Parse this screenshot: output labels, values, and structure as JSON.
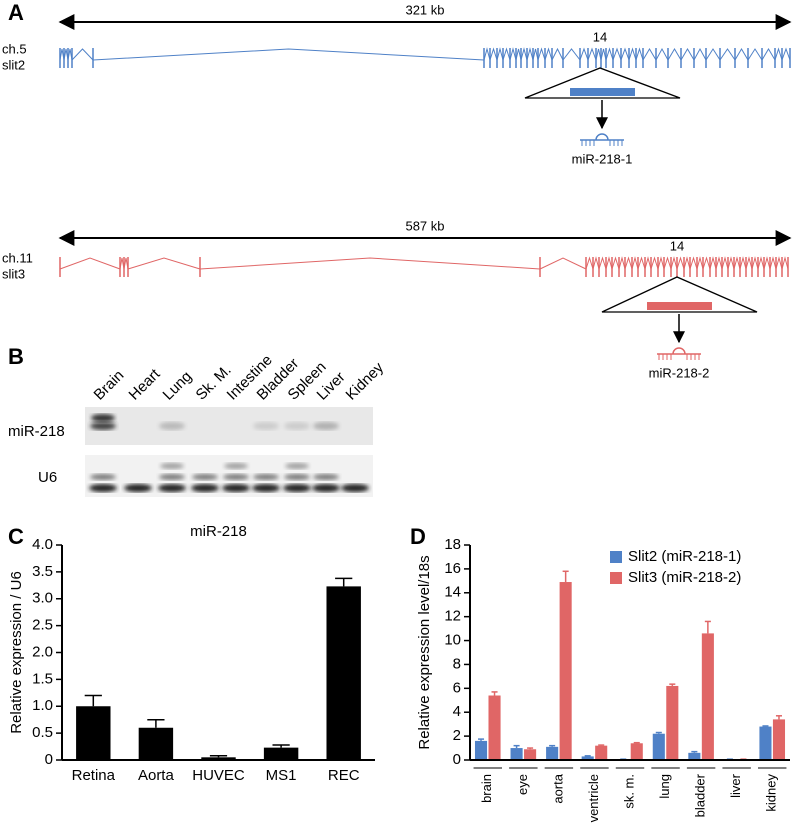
{
  "panel_a": {
    "label": "A",
    "slit2": {
      "size": "321 kb",
      "chromosome": "ch.5",
      "gene": "slit2",
      "exon": "14",
      "mirna": "miR-218-1"
    },
    "slit3": {
      "size": "587 kb",
      "chromosome": "ch.11",
      "gene": "slit3",
      "exon": "14",
      "mirna": "miR-218-2"
    }
  },
  "panel_b": {
    "label": "B",
    "lanes": [
      "Brain",
      "Heart",
      "Lung",
      "Sk. M.",
      "Intestine",
      "Bladder",
      "Spleen",
      "Liver",
      "Kidney"
    ],
    "rows": [
      "miR-218",
      "U6"
    ]
  },
  "chart_data": [
    {
      "type": "bar",
      "label": "C",
      "title": "miR-218",
      "y_label": "Relative expression / U6",
      "categories": [
        "Retina",
        "Aorta",
        "HUVEC",
        "MS1",
        "REC"
      ],
      "values": [
        1.0,
        0.6,
        0.05,
        0.23,
        3.23
      ],
      "errors": [
        0.2,
        0.15,
        0.03,
        0.05,
        0.15
      ],
      "color": "#000000",
      "ylim": [
        0,
        4
      ],
      "yticks": [
        0,
        0.5,
        {
          "value": 1,
          "label": "1.0"
        },
        1.5,
        {
          "value": 2,
          "label": "2.0"
        },
        2.5,
        {
          "value": 3,
          "label": "3.0"
        },
        3.5,
        {
          "value": 4,
          "label": "4.0"
        }
      ]
    },
    {
      "type": "grouped_bar",
      "label": "D",
      "y_label": "Relative expression level/18s",
      "categories": [
        "brain",
        "eye",
        "aorta",
        "ventricle",
        "sk. m.",
        "lung",
        "bladder",
        "liver",
        "kidney"
      ],
      "series": [
        {
          "name": "Slit2 (miR-218-1)",
          "color": "#4f81c7",
          "values": [
            1.6,
            1.0,
            1.1,
            0.3,
            0.05,
            2.2,
            0.6,
            0.05,
            2.8
          ],
          "errors": [
            0.15,
            0.2,
            0.1,
            0.05,
            0.02,
            0.1,
            0.1,
            0.02,
            0.05
          ]
        },
        {
          "name": "Slit3 (miR-218-2)",
          "color": "#e06666",
          "values": [
            5.4,
            0.9,
            14.9,
            1.2,
            1.4,
            6.2,
            10.6,
            0.05,
            3.4
          ],
          "errors": [
            0.3,
            0.1,
            0.9,
            0.05,
            0.05,
            0.15,
            1.0,
            0.02,
            0.3
          ]
        }
      ],
      "ylim": [
        0,
        18
      ],
      "yticks": [
        0,
        2,
        4,
        6,
        8,
        10,
        12,
        14,
        16,
        18
      ],
      "legend": "upper right"
    }
  ]
}
